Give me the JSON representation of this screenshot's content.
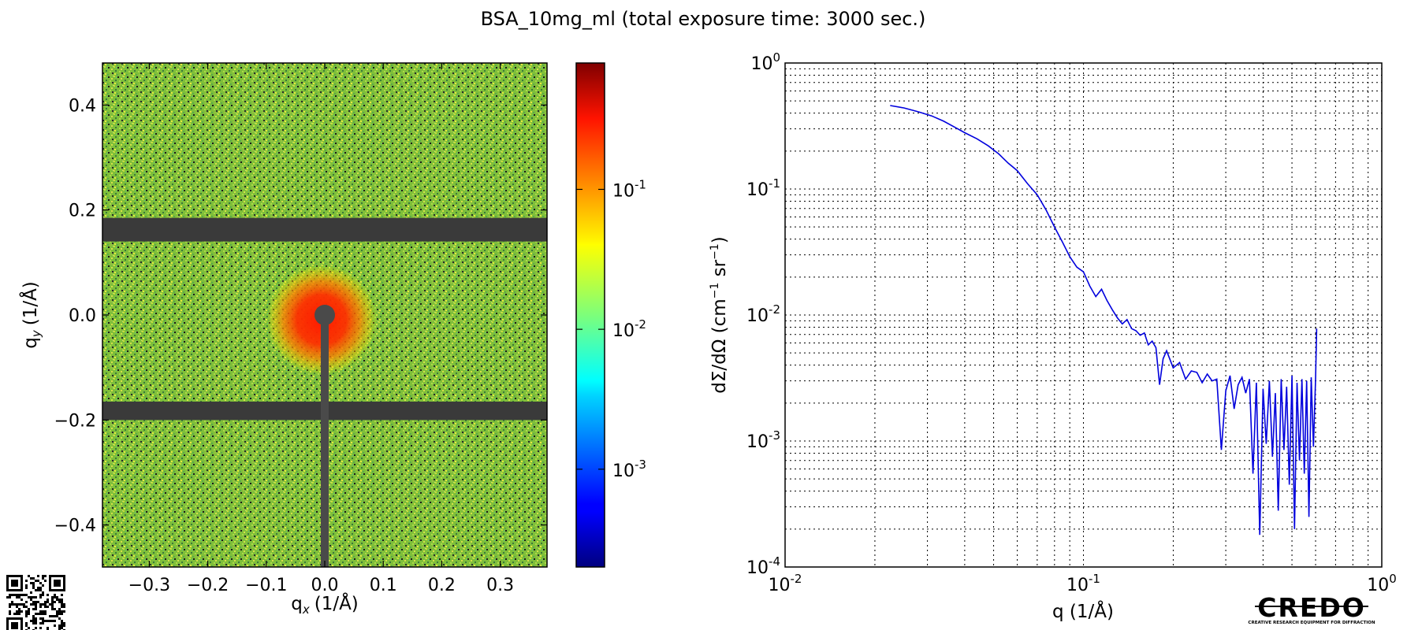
{
  "figure": {
    "title": "BSA_10mg_ml (total exposure time: 3000 sec.)",
    "logo_text": "CREDO",
    "logo_subtext": "CREATIVE RESEARCH EQUIPMENT FOR DIFFRACTION"
  },
  "chart_data": [
    {
      "type": "heatmap",
      "description_source": "2D scattering pattern",
      "xlabel": "q",
      "xlabel_sub": "x",
      "xlabel_unit": "(1/Å)",
      "ylabel": "q",
      "ylabel_sub": "y",
      "ylabel_unit": "(1/Å)",
      "xlim": [
        -0.38,
        0.38
      ],
      "ylim": [
        0.48,
        -0.48
      ],
      "x_ticks": [
        -0.3,
        -0.2,
        -0.1,
        0.0,
        0.1,
        0.2,
        0.3
      ],
      "x_tick_labels": [
        "−0.3",
        "−0.2",
        "−0.1",
        "0.0",
        "0.1",
        "0.2",
        "0.3"
      ],
      "y_ticks": [
        -0.4,
        -0.2,
        0.0,
        0.2,
        0.4
      ],
      "y_tick_labels": [
        "−0.4",
        "−0.2",
        "0.0",
        "0.2",
        "0.4"
      ],
      "beamstop_bands_qy": [
        [
          -0.2,
          -0.165
        ],
        [
          0.14,
          0.185
        ]
      ],
      "beamstop_center": [
        0.0,
        0.0
      ],
      "colormap": "jet",
      "colorbar": {
        "scale": "log",
        "range": [
          0.0002,
          0.8
        ],
        "ticks": [
          0.001,
          0.01,
          0.1
        ],
        "tick_bases": [
          "10",
          "10",
          "10"
        ],
        "tick_exps": [
          "-3",
          "-2",
          "-1"
        ]
      }
    },
    {
      "type": "line",
      "xscale": "log",
      "yscale": "log",
      "xlim": [
        0.01,
        1.0
      ],
      "ylim": [
        0.0001,
        1.0
      ],
      "grid": true,
      "xlabel": "q (1/Å)",
      "ylabel_prefix": "dΣ/dΩ (cm",
      "ylabel_exp1": "−1",
      "ylabel_mid": " sr",
      "ylabel_exp2": "−1",
      "ylabel_suffix": ")",
      "x_ticks": [
        0.01,
        0.1,
        1.0
      ],
      "x_tick_bases": [
        "10",
        "10",
        "10"
      ],
      "x_tick_exps": [
        "-2",
        "-1",
        "0"
      ],
      "y_ticks": [
        0.0001,
        0.001,
        0.01,
        0.1,
        1.0
      ],
      "y_tick_bases": [
        "10",
        "10",
        "10",
        "10",
        "10"
      ],
      "y_tick_exps": [
        "-4",
        "-3",
        "-2",
        "-1",
        "0"
      ],
      "series_color": "#0000dd",
      "x": [
        0.0225,
        0.025,
        0.028,
        0.031,
        0.034,
        0.037,
        0.04,
        0.044,
        0.048,
        0.052,
        0.056,
        0.06,
        0.065,
        0.07,
        0.075,
        0.08,
        0.085,
        0.09,
        0.095,
        0.1,
        0.105,
        0.11,
        0.115,
        0.12,
        0.125,
        0.13,
        0.135,
        0.14,
        0.145,
        0.15,
        0.155,
        0.16,
        0.165,
        0.17,
        0.175,
        0.18,
        0.185,
        0.19,
        0.2,
        0.21,
        0.22,
        0.23,
        0.24,
        0.25,
        0.26,
        0.27,
        0.28,
        0.29,
        0.3,
        0.31,
        0.32,
        0.33,
        0.34,
        0.35,
        0.36,
        0.37,
        0.38,
        0.39,
        0.4,
        0.41,
        0.42,
        0.43,
        0.44,
        0.45,
        0.46,
        0.47,
        0.48,
        0.49,
        0.5,
        0.51,
        0.52,
        0.53,
        0.54,
        0.55,
        0.56,
        0.57,
        0.58,
        0.59,
        0.6,
        0.605
      ],
      "y": [
        0.46,
        0.44,
        0.41,
        0.38,
        0.345,
        0.31,
        0.28,
        0.25,
        0.22,
        0.19,
        0.16,
        0.14,
        0.11,
        0.09,
        0.068,
        0.05,
        0.038,
        0.029,
        0.024,
        0.022,
        0.017,
        0.014,
        0.016,
        0.013,
        0.011,
        0.0095,
        0.0085,
        0.0092,
        0.0078,
        0.0075,
        0.0069,
        0.0072,
        0.0058,
        0.0062,
        0.0055,
        0.0028,
        0.0045,
        0.0052,
        0.0038,
        0.0042,
        0.0031,
        0.0036,
        0.0035,
        0.0029,
        0.0034,
        0.003,
        0.0031,
        0.00085,
        0.0025,
        0.0033,
        0.0018,
        0.0028,
        0.0032,
        0.0024,
        0.0031,
        0.00055,
        0.0029,
        0.00018,
        0.0026,
        0.00095,
        0.003,
        0.00075,
        0.0024,
        0.00028,
        0.0031,
        0.00085,
        0.0027,
        0.00045,
        0.0033,
        0.0002,
        0.0029,
        0.0007,
        0.0031,
        0.00055,
        0.003,
        0.00025,
        0.0032,
        0.0009,
        0.0031,
        0.0078
      ]
    }
  ]
}
